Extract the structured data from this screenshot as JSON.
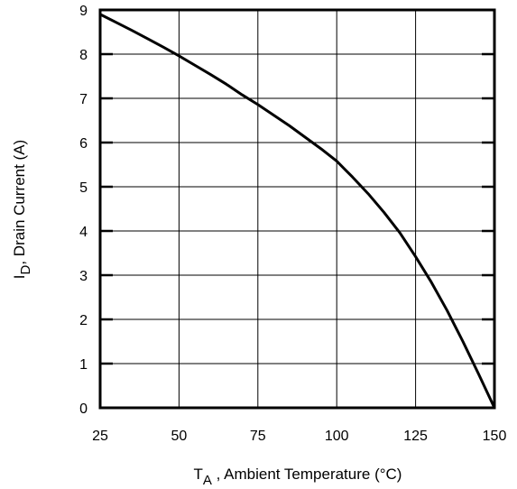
{
  "chart_data": {
    "type": "line",
    "title": "",
    "xlabel_main": "T",
    "xlabel_sub": "A",
    "xlabel_rest": " , Ambient Temperature (°C)",
    "ylabel_main": "I",
    "ylabel_sub": "D",
    "ylabel_rest": ",  Drain Current (A)",
    "xlim": [
      25,
      150
    ],
    "ylim": [
      0,
      9
    ],
    "xticks": [
      25,
      50,
      75,
      100,
      125,
      150
    ],
    "yticks": [
      0,
      1,
      2,
      3,
      4,
      5,
      6,
      7,
      8,
      9
    ],
    "grid": true,
    "series": [
      {
        "x": [
          25,
          30,
          35,
          40,
          45,
          50,
          55,
          60,
          65,
          70,
          75,
          80,
          85,
          90,
          95,
          100,
          105,
          110,
          115,
          120,
          125,
          130,
          135,
          140,
          145,
          150
        ],
        "y": [
          8.9,
          8.72,
          8.54,
          8.35,
          8.16,
          7.96,
          7.75,
          7.54,
          7.32,
          7.08,
          6.86,
          6.62,
          6.38,
          6.12,
          5.86,
          5.58,
          5.22,
          4.84,
          4.42,
          3.96,
          3.42,
          2.84,
          2.2,
          1.5,
          0.76,
          0.0
        ],
        "color": "#000000"
      }
    ]
  }
}
